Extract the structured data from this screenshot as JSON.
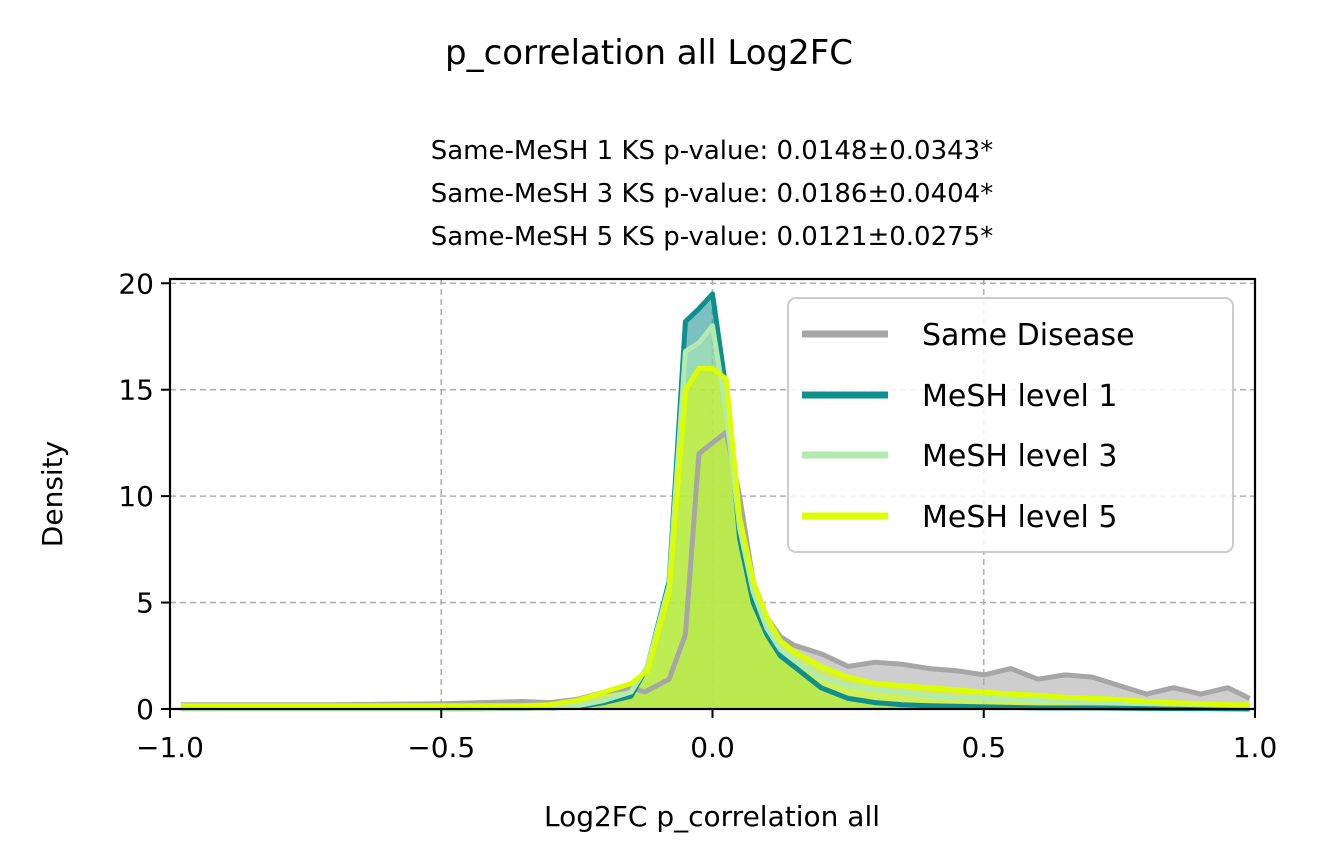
{
  "chart_data": {
    "type": "area",
    "suptitle": "p_correlation all Log2FC",
    "title_lines": [
      "Same-MeSH 1 KS p-value: 0.0148±0.0343*",
      "Same-MeSH 3 KS p-value: 0.0186±0.0404*",
      "Same-MeSH 5 KS p-value: 0.0121±0.0275*"
    ],
    "xlabel": "Log2FC p_correlation all",
    "ylabel": "Density",
    "xlim": [
      -1.0,
      1.0
    ],
    "ylim": [
      0,
      20.2
    ],
    "xticks": [
      -1.0,
      -0.5,
      0.0,
      0.5,
      1.0
    ],
    "xtick_labels": [
      "−1.0",
      "−0.5",
      "0.0",
      "0.5",
      "1.0"
    ],
    "yticks": [
      0,
      5,
      10,
      15,
      20
    ],
    "ytick_labels": [
      "0",
      "5",
      "10",
      "15",
      "20"
    ],
    "grid": true,
    "legend_position": "upper right",
    "series": [
      {
        "name": "Same Disease",
        "color": "#a6a6a6",
        "fill_color": "#a6a6a6",
        "x": [
          -0.98,
          -0.9,
          -0.7,
          -0.5,
          -0.35,
          -0.3,
          -0.25,
          -0.2,
          -0.15,
          -0.125,
          -0.08,
          -0.05,
          -0.025,
          0.0,
          0.025,
          0.05,
          0.075,
          0.1,
          0.125,
          0.15,
          0.2,
          0.25,
          0.3,
          0.35,
          0.4,
          0.45,
          0.5,
          0.55,
          0.6,
          0.65,
          0.7,
          0.75,
          0.8,
          0.85,
          0.9,
          0.95,
          0.99
        ],
        "y": [
          0.2,
          0.2,
          0.2,
          0.25,
          0.35,
          0.3,
          0.45,
          0.8,
          1.0,
          0.8,
          1.4,
          3.5,
          12.0,
          12.5,
          13.0,
          10.0,
          6.0,
          4.3,
          3.4,
          3.0,
          2.6,
          2.0,
          2.2,
          2.1,
          1.9,
          1.8,
          1.6,
          1.9,
          1.4,
          1.6,
          1.5,
          1.1,
          0.7,
          1.0,
          0.7,
          1.0,
          0.5
        ]
      },
      {
        "name": "MeSH level 1",
        "color": "#0e8e8e",
        "fill_color": "#0e8e8e",
        "x": [
          -0.98,
          -0.5,
          -0.3,
          -0.25,
          -0.2,
          -0.15,
          -0.12,
          -0.08,
          -0.05,
          -0.025,
          0.0,
          0.025,
          0.05,
          0.075,
          0.1,
          0.125,
          0.15,
          0.2,
          0.25,
          0.3,
          0.35,
          0.4,
          0.5,
          0.6,
          0.7,
          0.8,
          0.9,
          0.99
        ],
        "y": [
          0.0,
          0.0,
          0.05,
          0.1,
          0.3,
          0.6,
          2.0,
          6.0,
          18.2,
          18.8,
          19.5,
          15.0,
          8.0,
          5.0,
          3.5,
          2.5,
          2.0,
          1.0,
          0.5,
          0.3,
          0.2,
          0.15,
          0.1,
          0.05,
          0.05,
          0.03,
          0.02,
          0.0
        ]
      },
      {
        "name": "MeSH level 3",
        "color": "#b2ebb0",
        "fill_color": "#b2ebb0",
        "x": [
          -0.98,
          -0.5,
          -0.3,
          -0.25,
          -0.2,
          -0.15,
          -0.12,
          -0.08,
          -0.05,
          -0.025,
          0.0,
          0.025,
          0.05,
          0.075,
          0.1,
          0.125,
          0.15,
          0.2,
          0.25,
          0.3,
          0.35,
          0.4,
          0.5,
          0.6,
          0.7,
          0.8,
          0.9,
          0.99
        ],
        "y": [
          0.0,
          0.0,
          0.05,
          0.15,
          0.4,
          0.8,
          2.0,
          5.8,
          16.8,
          17.2,
          18.0,
          14.0,
          8.5,
          5.5,
          3.8,
          2.8,
          2.3,
          1.5,
          1.1,
          0.9,
          0.8,
          0.6,
          0.5,
          0.4,
          0.3,
          0.25,
          0.2,
          0.15
        ]
      },
      {
        "name": "MeSH level 5",
        "color": "#dcff00",
        "fill_color": "#dcff00",
        "x": [
          -0.98,
          -0.9,
          -0.7,
          -0.5,
          -0.35,
          -0.3,
          -0.25,
          -0.2,
          -0.15,
          -0.12,
          -0.08,
          -0.05,
          -0.025,
          0.0,
          0.025,
          0.05,
          0.075,
          0.1,
          0.125,
          0.15,
          0.2,
          0.25,
          0.3,
          0.35,
          0.4,
          0.45,
          0.5,
          0.55,
          0.6,
          0.65,
          0.7,
          0.75,
          0.8,
          0.85,
          0.9,
          0.95,
          0.99
        ],
        "y": [
          0.15,
          0.15,
          0.15,
          0.15,
          0.15,
          0.2,
          0.4,
          0.8,
          1.2,
          1.8,
          5.5,
          15.0,
          16.0,
          16.0,
          15.5,
          9.0,
          6.0,
          4.3,
          3.2,
          2.7,
          2.0,
          1.5,
          1.2,
          1.1,
          1.0,
          0.9,
          0.8,
          0.7,
          0.65,
          0.55,
          0.5,
          0.45,
          0.35,
          0.3,
          0.25,
          0.2,
          0.2
        ]
      }
    ]
  }
}
